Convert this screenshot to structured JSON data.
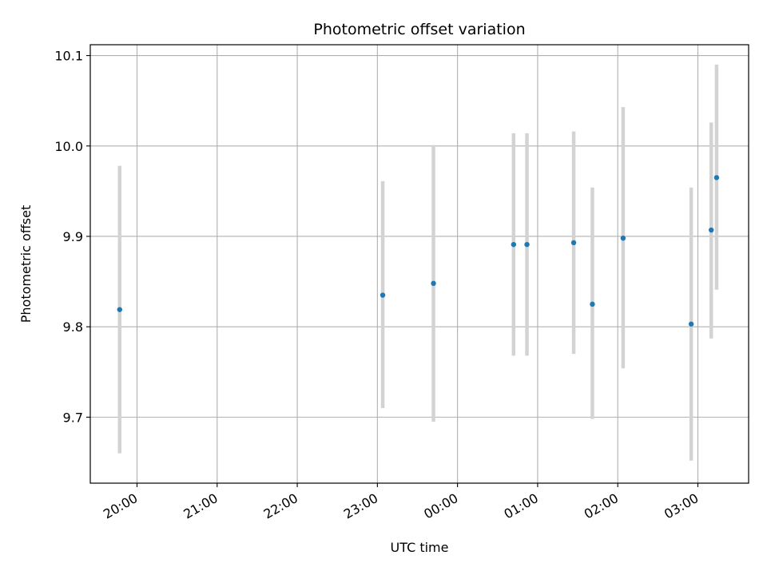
{
  "chart_data": {
    "type": "scatter",
    "title": "Photometric offset variation",
    "xlabel": "UTC time",
    "ylabel": "Photometric offset",
    "x_is_time": true,
    "x_tick_labels": [
      "20:00",
      "21:00",
      "22:00",
      "23:00",
      "00:00",
      "01:00",
      "02:00",
      "03:00"
    ],
    "y_ticks": [
      9.7,
      9.8,
      9.9,
      10.0,
      10.1
    ],
    "y_tick_labels": [
      "9.7",
      "9.8",
      "9.9",
      "10.0",
      "10.1"
    ],
    "ylim": [
      9.627,
      10.112
    ],
    "xlim": [
      "19:25",
      "03:38"
    ],
    "grid": true,
    "series": [
      {
        "x": [
          "19:47",
          "23:04",
          "23:42",
          "00:42",
          "00:52",
          "01:27",
          "01:41",
          "02:04",
          "02:55",
          "03:10",
          "03:14"
        ],
        "y": [
          9.819,
          9.835,
          9.848,
          9.891,
          9.891,
          9.893,
          9.825,
          9.898,
          9.803,
          9.907,
          9.965
        ],
        "y_err_low": [
          9.66,
          9.71,
          9.695,
          9.768,
          9.768,
          9.77,
          9.698,
          9.754,
          9.652,
          9.787,
          9.841
        ],
        "y_err_high": [
          9.978,
          9.961,
          10.001,
          10.014,
          10.014,
          10.016,
          9.954,
          10.043,
          9.954,
          10.026,
          10.09
        ]
      }
    ],
    "colors": {
      "point": "#1f77b4",
      "errorbar": "#d3d3d3",
      "grid": "#b0b0b0",
      "axes": "#000000"
    }
  }
}
